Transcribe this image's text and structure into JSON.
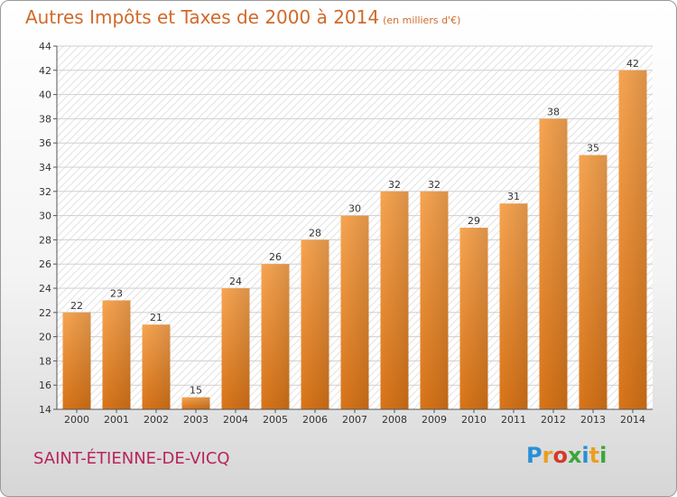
{
  "header": {
    "title": "Autres Impôts et Taxes de 2000 à 2014",
    "unit": "(en milliers d'€)"
  },
  "footer": {
    "commune": "SAINT-ÉTIENNE-DE-VICQ",
    "logo_letters": [
      "P",
      "r",
      "o",
      "x",
      "i",
      "t",
      "i"
    ],
    "logo_colors": [
      "#2a8fd6",
      "#e8a020",
      "#d43a2a",
      "#3aa63a",
      "#2a8fd6",
      "#e8a020",
      "#3aa63a"
    ]
  },
  "chart_data": {
    "type": "bar",
    "title": "Autres Impôts et Taxes de 2000 à 2014",
    "categories": [
      "2000",
      "2001",
      "2002",
      "2003",
      "2004",
      "2005",
      "2006",
      "2007",
      "2008",
      "2009",
      "2010",
      "2011",
      "2012",
      "2013",
      "2014"
    ],
    "values": [
      22,
      23,
      21,
      15,
      24,
      26,
      28,
      30,
      32,
      32,
      29,
      31,
      38,
      35,
      42
    ],
    "ylim": [
      14,
      44
    ],
    "yticks": [
      14,
      16,
      18,
      20,
      22,
      24,
      26,
      28,
      30,
      32,
      34,
      36,
      38,
      40,
      42,
      44
    ],
    "grid": true,
    "bar_color_top": "#f7a552",
    "bar_color_bottom": "#d87418"
  }
}
